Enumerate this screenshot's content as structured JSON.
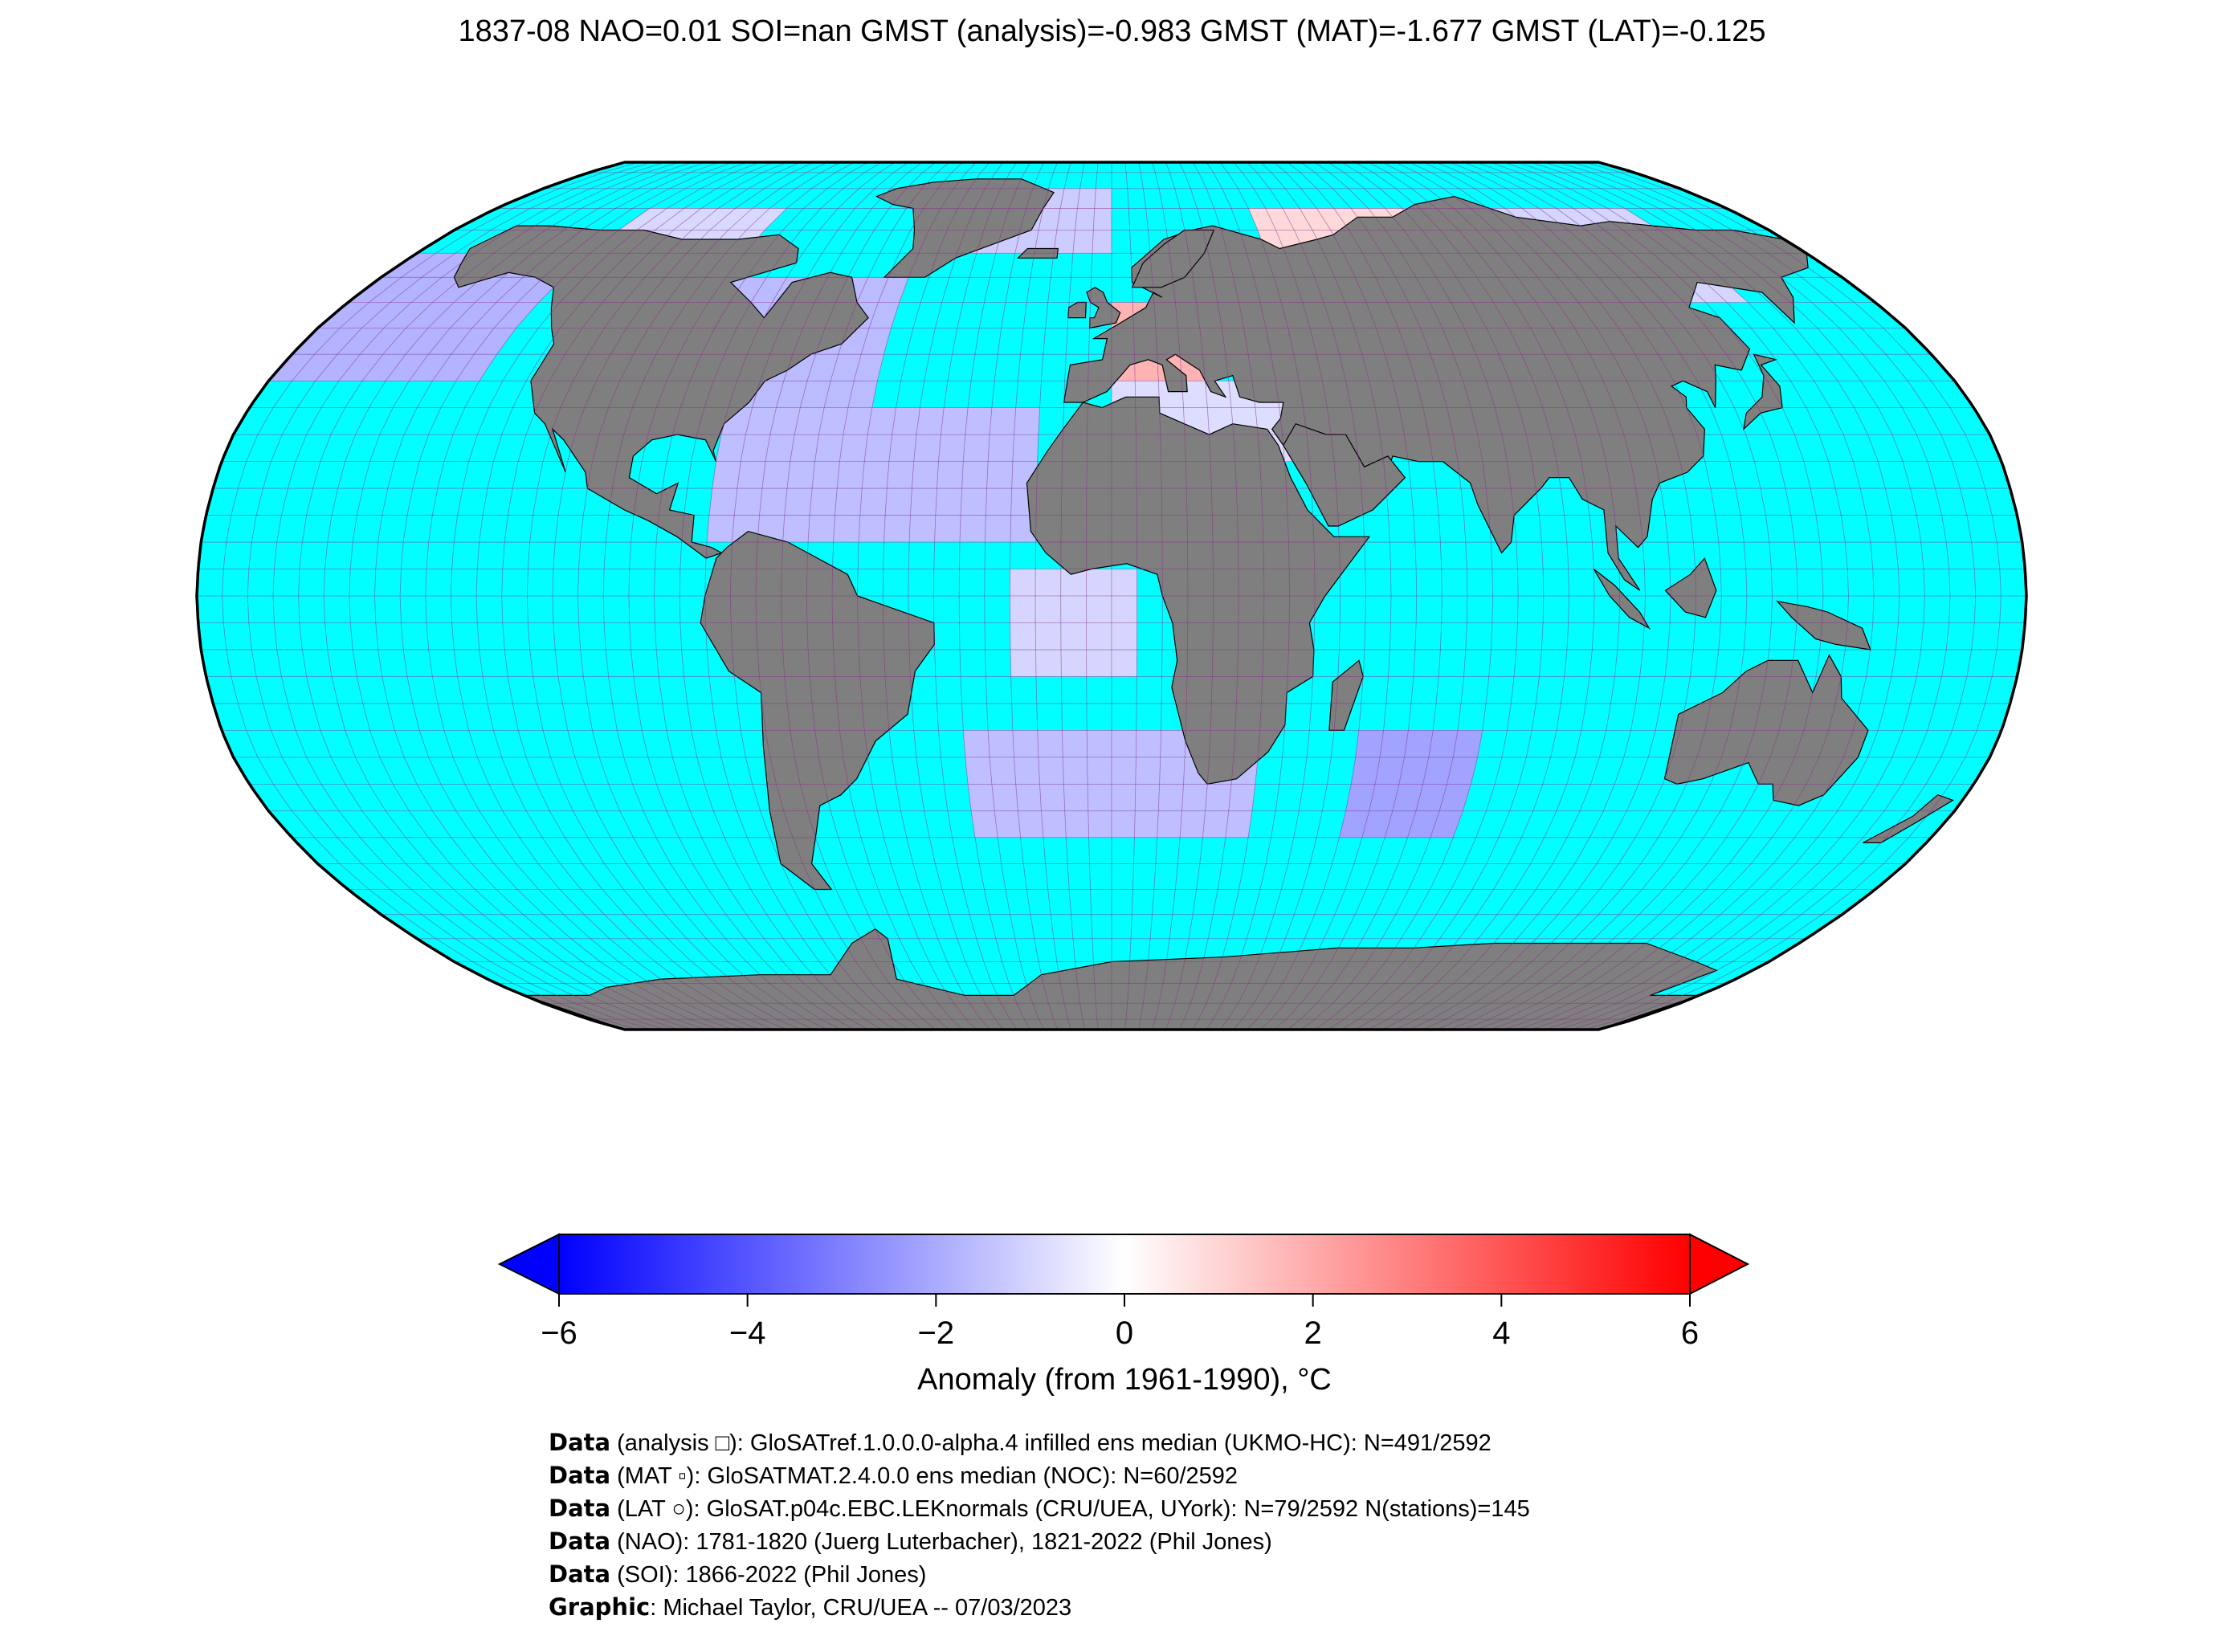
{
  "title": "1837-08 NAO=0.01 SOI=nan GMST (analysis)=-0.983 GMST (MAT)=-1.677 GMST (LAT)=-0.125",
  "map": {
    "projection": "Robinson",
    "ocean_color": "#00ffff",
    "land_color": "#7f7f7f",
    "gridline_color": "#8a2a8a",
    "coastline_color": "#000000"
  },
  "colorbar": {
    "label": "Anomaly (from 1961-1990), °C",
    "ticks": [
      "−6",
      "−4",
      "−2",
      "0",
      "2",
      "4",
      "6"
    ],
    "min": -6,
    "max": 6,
    "colors": [
      "#0000ff",
      "#ffffff",
      "#ff0000"
    ],
    "extend": "both"
  },
  "credits": [
    {
      "bold": "Data",
      "text": " (analysis □): GloSATref.1.0.0.0-alpha.4 infilled ens median (UKMO-HC): N=491/2592"
    },
    {
      "bold": "Data",
      "text": " (MAT ▫): GloSATMAT.2.4.0.0 ens median (NOC): N=60/2592"
    },
    {
      "bold": "Data",
      "text": " (LAT ○): GloSAT.p04c.EBC.LEKnormals (CRU/UEA, UYork): N=79/2592 N(stations)=145"
    },
    {
      "bold": "Data",
      "text": " (NAO): 1781-1820 (Juerg Luterbacher), 1821-2022 (Phil Jones)"
    },
    {
      "bold": "Data",
      "text": " (SOI): 1866-2022 (Phil Jones)"
    },
    {
      "bold": "Graphic",
      "text": ": Michael Taylor, CRU/UEA -- 07/03/2023"
    }
  ],
  "anomaly_cells": [
    {
      "region": "Alaska / North Pacific",
      "lon": [
        -180,
        -135
      ],
      "lat": [
        40,
        65
      ],
      "anomaly": -1.8
    },
    {
      "region": "Northern Canada",
      "lon": [
        -135,
        -95
      ],
      "lat": [
        60,
        75
      ],
      "anomaly": -0.9
    },
    {
      "region": "Eastern North America / North Atlantic",
      "lon": [
        -100,
        -50
      ],
      "lat": [
        30,
        60
      ],
      "anomaly": -1.6
    },
    {
      "region": "Greenland / North Atlantic",
      "lon": [
        -50,
        0
      ],
      "lat": [
        65,
        80
      ],
      "anomaly": -1.2
    },
    {
      "region": "Tropical North Atlantic",
      "lon": [
        -80,
        -15
      ],
      "lat": [
        10,
        35
      ],
      "anomaly": -1.5
    },
    {
      "region": "Western Europe",
      "lon": [
        0,
        20
      ],
      "lat": [
        40,
        55
      ],
      "anomaly": 1.8
    },
    {
      "region": "Northern Eurasia",
      "lon": [
        40,
        100
      ],
      "lat": [
        55,
        75
      ],
      "anomaly": 0.9
    },
    {
      "region": "Northeast Asia",
      "lon": [
        100,
        150
      ],
      "lat": [
        55,
        75
      ],
      "anomaly": -1.0
    },
    {
      "region": "Mediterranean / North Africa",
      "lon": [
        0,
        40
      ],
      "lat": [
        25,
        40
      ],
      "anomaly": -0.8
    },
    {
      "region": "Gulf of Guinea",
      "lon": [
        -20,
        5
      ],
      "lat": [
        -15,
        5
      ],
      "anomaly": -1.0
    },
    {
      "region": "South Atlantic",
      "lon": [
        -30,
        30
      ],
      "lat": [
        -45,
        -25
      ],
      "anomaly": -1.5
    },
    {
      "region": "Southwest Indian Ocean",
      "lon": [
        50,
        75
      ],
      "lat": [
        -45,
        -25
      ],
      "anomaly": -2.2
    }
  ]
}
